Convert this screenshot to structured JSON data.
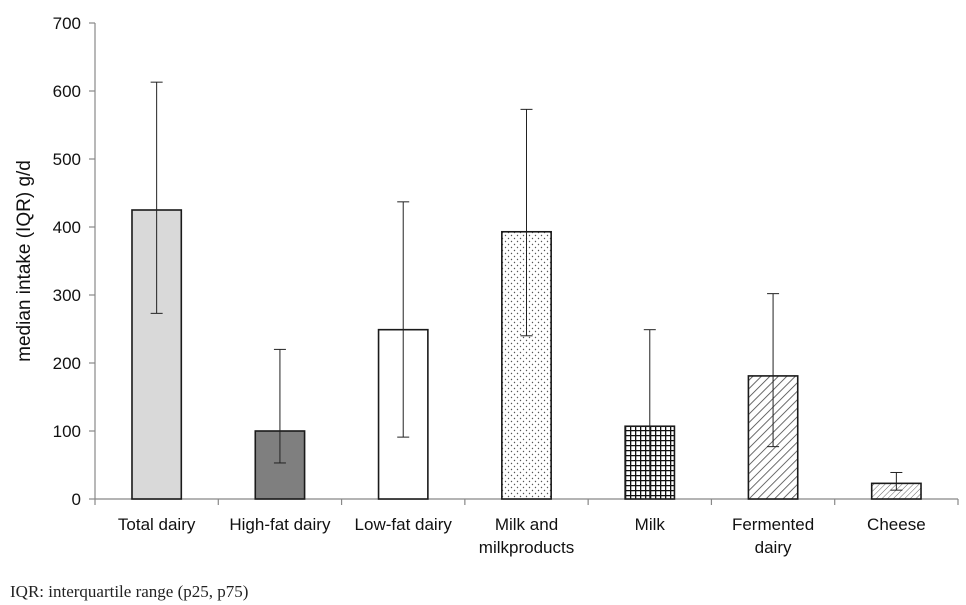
{
  "chart_data": {
    "type": "bar",
    "categories": [
      [
        "Total dairy"
      ],
      [
        "High-fat dairy"
      ],
      [
        "Low-fat dairy"
      ],
      [
        "Milk and",
        "milkproducts"
      ],
      [
        "Milk"
      ],
      [
        "Fermented",
        "dairy"
      ],
      [
        "Cheese"
      ]
    ],
    "values": [
      425,
      100,
      249,
      393,
      107,
      181,
      23
    ],
    "p25": [
      273,
      53,
      91,
      240,
      0,
      77,
      13
    ],
    "p75": [
      613,
      220,
      437,
      573,
      249,
      302,
      39
    ],
    "fills": [
      "light-gray",
      "dark-gray",
      "white",
      "dotted",
      "crosshatch",
      "diagonal-hatch",
      "fine-diagonal-hatch"
    ],
    "colors": {
      "light_gray": "#d9d9d9",
      "dark_gray": "#7f7f7f",
      "outline": "#1a1a1a"
    },
    "ylabel": "median intake (IQR) g/d",
    "xlabel": "",
    "ylim": [
      0,
      700
    ],
    "yticks": [
      0,
      100,
      200,
      300,
      400,
      500,
      600,
      700
    ],
    "grid": false,
    "legend": "none"
  },
  "footnote": "IQR: interquartile range (p25, p75)"
}
